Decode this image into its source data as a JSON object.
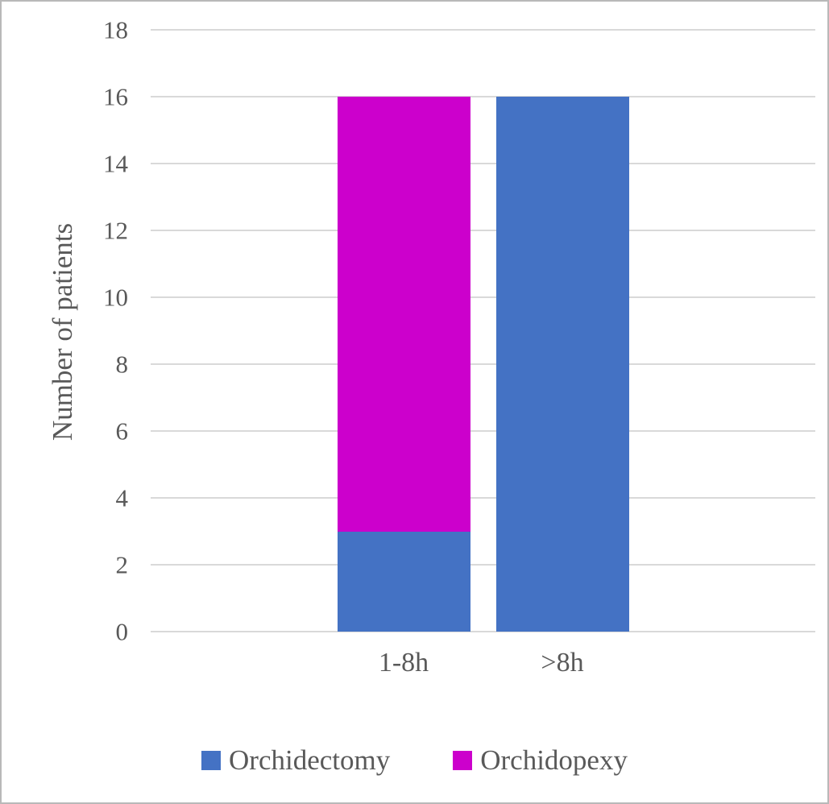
{
  "chart_data": {
    "type": "bar",
    "stacked": true,
    "categories": [
      "1-8h",
      ">8h"
    ],
    "series": [
      {
        "name": "Orchidectomy",
        "color": "#4472C4",
        "values": [
          3,
          16
        ]
      },
      {
        "name": "Orchidopexy",
        "color": "#CC00CC",
        "values": [
          13,
          0
        ]
      }
    ],
    "title": "",
    "xlabel": "",
    "ylabel": "Number of patients",
    "ylim": [
      0,
      18
    ],
    "ytick_step": 2,
    "yticks": [
      0,
      2,
      4,
      6,
      8,
      10,
      12,
      14,
      16,
      18
    ],
    "grid": true,
    "gridline_color": "#d9d9d9",
    "text_color": "#595959",
    "legend_position": "bottom"
  }
}
